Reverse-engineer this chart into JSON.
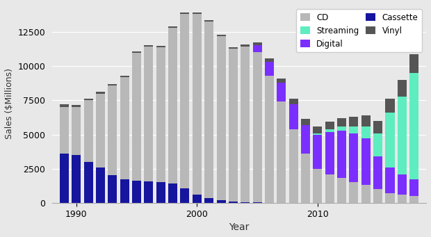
{
  "years": [
    1989,
    1990,
    1991,
    1992,
    1993,
    1994,
    1995,
    1996,
    1997,
    1998,
    1999,
    2000,
    2001,
    2002,
    2003,
    2004,
    2005,
    2006,
    2007,
    2008,
    2009,
    2010,
    2011,
    2012,
    2013,
    2014,
    2015,
    2016,
    2017,
    2018
  ],
  "cd": [
    3400,
    3500,
    4500,
    5400,
    6600,
    7500,
    9400,
    9900,
    9900,
    11400,
    12800,
    13200,
    12900,
    12000,
    11200,
    11400,
    11000,
    9300,
    7400,
    5400,
    3600,
    2500,
    2100,
    1800,
    1500,
    1300,
    1000,
    700,
    600,
    500
  ],
  "cassette": [
    3600,
    3500,
    3000,
    2600,
    2000,
    1700,
    1600,
    1550,
    1500,
    1400,
    1050,
    620,
    360,
    200,
    110,
    60,
    25,
    10,
    5,
    2,
    1,
    0,
    0,
    0,
    0,
    0,
    0,
    0,
    0,
    0
  ],
  "digital": [
    0,
    0,
    0,
    0,
    0,
    0,
    0,
    0,
    0,
    0,
    0,
    0,
    0,
    0,
    0,
    0,
    500,
    1000,
    1400,
    1800,
    2100,
    2500,
    3100,
    3500,
    3600,
    3400,
    2400,
    1900,
    1500,
    1200
  ],
  "streaming": [
    0,
    0,
    0,
    0,
    0,
    0,
    0,
    0,
    0,
    0,
    0,
    0,
    0,
    0,
    0,
    0,
    0,
    0,
    0,
    0,
    0,
    100,
    200,
    300,
    500,
    900,
    1700,
    4000,
    5700,
    7800
  ],
  "vinyl": [
    200,
    150,
    120,
    110,
    100,
    100,
    100,
    100,
    100,
    100,
    100,
    100,
    100,
    100,
    100,
    150,
    200,
    250,
    300,
    400,
    450,
    500,
    550,
    600,
    700,
    800,
    900,
    1000,
    1200,
    1400
  ],
  "cd_color": "#b8b8b8",
  "cassette_color": "#15159e",
  "digital_color": "#7b2fff",
  "streaming_color": "#5eedc0",
  "vinyl_color": "#555555",
  "background_color": "#e8e8e8",
  "ylabel": "Sales ($Millions)",
  "xlabel": "Year",
  "ylim": [
    0,
    14500
  ],
  "xticks": [
    1990,
    2000,
    2010
  ],
  "yticks": [
    0,
    2500,
    5000,
    7500,
    10000,
    12500
  ]
}
